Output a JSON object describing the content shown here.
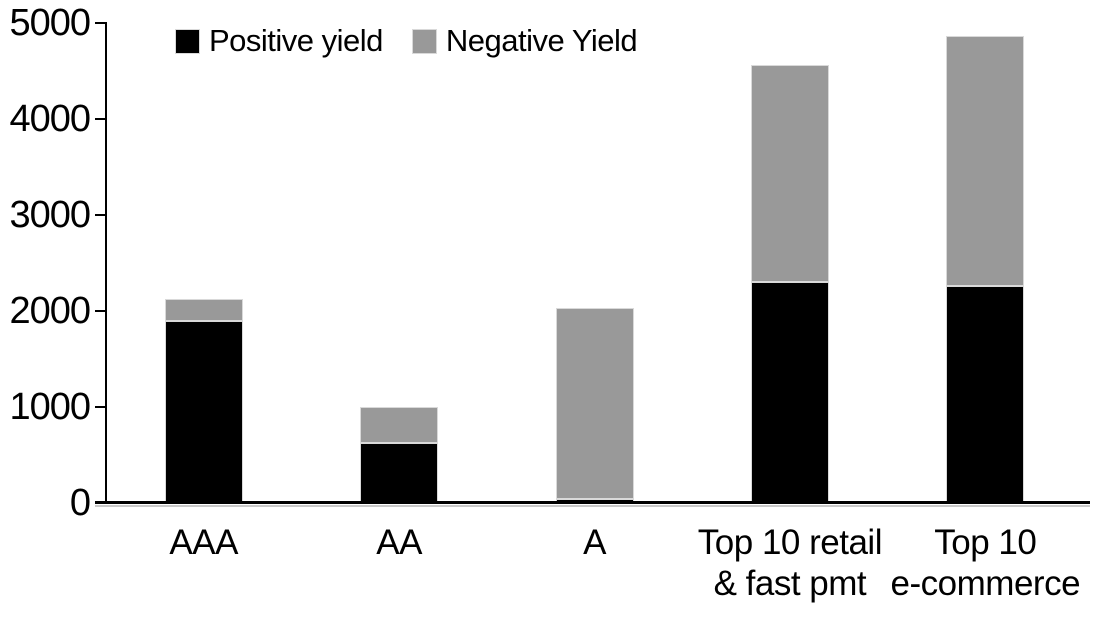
{
  "chart_data": {
    "type": "bar",
    "stacked": true,
    "title": "",
    "xlabel": "",
    "ylabel": "",
    "grid": false,
    "legend_position": "top-left",
    "ylim": [
      0,
      5000
    ],
    "yticks": [
      0,
      1000,
      2000,
      3000,
      4000,
      5000
    ],
    "categories": [
      {
        "id": "aaa",
        "lines": [
          "AAA"
        ]
      },
      {
        "id": "aa",
        "lines": [
          "AA"
        ]
      },
      {
        "id": "a",
        "lines": [
          "A"
        ]
      },
      {
        "id": "top10-retail-fast-pmt",
        "lines": [
          "Top 10 retail",
          "& fast pmt"
        ]
      },
      {
        "id": "top10-ecommerce",
        "lines": [
          "Top 10",
          "e-commerce"
        ]
      }
    ],
    "series": [
      {
        "name": "Positive yield",
        "color": "#000000",
        "values": [
          1900,
          630,
          45,
          2300,
          2260
        ]
      },
      {
        "name": "Negative Yield",
        "color": "#999999",
        "values": [
          220,
          375,
          1990,
          2260,
          2600
        ]
      }
    ]
  },
  "colors": {
    "axis": "#000000",
    "positive": "#000000",
    "negative": "#999999"
  }
}
